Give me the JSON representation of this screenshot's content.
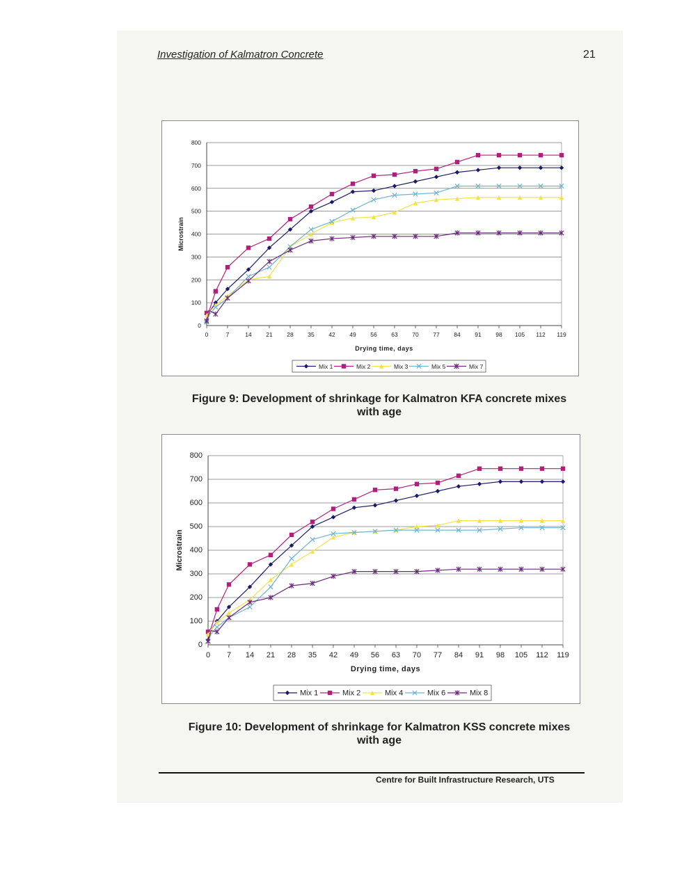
{
  "header": {
    "title": "Investigation of Kalmatron Concrete",
    "page_number": "21"
  },
  "figure9": {
    "caption_line1": "Figure 9: Development of shrinkage for Kalmatron KFA concrete mixes",
    "caption_line2": "with age"
  },
  "figure10": {
    "caption_line1": "Figure 10: Development of shrinkage for Kalmatron KSS concrete mixes",
    "caption_line2": "with age"
  },
  "footer": {
    "text": "Centre for Built Infrastructure Research, UTS"
  },
  "chart_data": [
    {
      "type": "line",
      "title": "",
      "xlabel": "Drying time, days",
      "ylabel": "Microstrain",
      "x": [
        0,
        1,
        3,
        7,
        14,
        21,
        28,
        35,
        42,
        49,
        56,
        63,
        70,
        77,
        84,
        91,
        98,
        105,
        112,
        119
      ],
      "xticks": [
        0,
        7,
        14,
        21,
        28,
        35,
        42,
        49,
        56,
        63,
        70,
        77,
        84,
        91,
        98,
        105,
        112,
        119
      ],
      "ylim": [
        0,
        800
      ],
      "yticks": [
        0,
        100,
        200,
        300,
        400,
        500,
        600,
        700,
        800
      ],
      "grid": "horizontal",
      "legend": "bottom",
      "series": [
        {
          "name": "Mix 1",
          "color": "#1a1a66",
          "marker": "diamond",
          "values": [
            20,
            60,
            100,
            160,
            245,
            340,
            420,
            500,
            540,
            585,
            590,
            610,
            630,
            650,
            670,
            680,
            690,
            690,
            690,
            690
          ]
        },
        {
          "name": "Mix 2",
          "color": "#b0207a",
          "marker": "square",
          "values": [
            55,
            70,
            150,
            255,
            340,
            380,
            465,
            520,
            575,
            620,
            655,
            660,
            675,
            685,
            715,
            745,
            745,
            745,
            745,
            745
          ]
        },
        {
          "name": "Mix 3",
          "color": "#f2e24a",
          "marker": "triangle",
          "values": [
            45,
            60,
            90,
            130,
            200,
            215,
            345,
            400,
            450,
            470,
            475,
            495,
            535,
            550,
            555,
            560,
            560,
            560,
            560,
            560
          ]
        },
        {
          "name": "Mix 5",
          "color": "#6fb3d0",
          "marker": "x",
          "values": [
            15,
            50,
            80,
            120,
            215,
            255,
            345,
            420,
            455,
            505,
            550,
            570,
            575,
            580,
            610,
            610,
            610,
            610,
            610,
            610
          ]
        },
        {
          "name": "Mix 7",
          "color": "#6a2a7a",
          "marker": "star",
          "values": [
            20,
            65,
            50,
            120,
            195,
            280,
            330,
            370,
            380,
            385,
            390,
            390,
            390,
            390,
            405,
            405,
            405,
            405,
            405,
            405
          ]
        }
      ]
    },
    {
      "type": "line",
      "title": "",
      "xlabel": "Drying time, days",
      "ylabel": "Microstrain",
      "x": [
        0,
        1,
        3,
        7,
        14,
        21,
        28,
        35,
        42,
        49,
        56,
        63,
        70,
        77,
        84,
        91,
        98,
        105,
        112,
        119
      ],
      "xticks": [
        0,
        7,
        14,
        21,
        28,
        35,
        42,
        49,
        56,
        63,
        70,
        77,
        84,
        91,
        98,
        105,
        112,
        119
      ],
      "ylim": [
        0,
        800
      ],
      "yticks": [
        0,
        100,
        200,
        300,
        400,
        500,
        600,
        700,
        800
      ],
      "grid": "horizontal",
      "legend": "bottom",
      "series": [
        {
          "name": "Mix 1",
          "color": "#1a1a66",
          "marker": "diamond",
          "values": [
            20,
            60,
            100,
            160,
            245,
            340,
            420,
            500,
            540,
            580,
            590,
            610,
            630,
            650,
            670,
            680,
            690,
            690,
            690,
            690
          ]
        },
        {
          "name": "Mix 2",
          "color": "#b0207a",
          "marker": "square",
          "values": [
            55,
            70,
            150,
            255,
            340,
            380,
            465,
            520,
            575,
            615,
            655,
            660,
            680,
            685,
            715,
            745,
            745,
            745,
            745,
            745
          ]
        },
        {
          "name": "Mix 4",
          "color": "#f2e24a",
          "marker": "triangle",
          "values": [
            45,
            60,
            95,
            135,
            190,
            275,
            340,
            395,
            455,
            475,
            480,
            485,
            500,
            505,
            525,
            525,
            525,
            525,
            525,
            525
          ]
        },
        {
          "name": "Mix 6",
          "color": "#6fb3d0",
          "marker": "x",
          "values": [
            15,
            45,
            75,
            115,
            160,
            245,
            365,
            445,
            470,
            475,
            480,
            485,
            485,
            485,
            485,
            485,
            490,
            495,
            495,
            495
          ]
        },
        {
          "name": "Mix 8",
          "color": "#6a2a7a",
          "marker": "star",
          "values": [
            15,
            60,
            55,
            115,
            180,
            200,
            250,
            260,
            290,
            310,
            310,
            310,
            310,
            315,
            320,
            320,
            320,
            320,
            320,
            320
          ]
        }
      ]
    }
  ]
}
